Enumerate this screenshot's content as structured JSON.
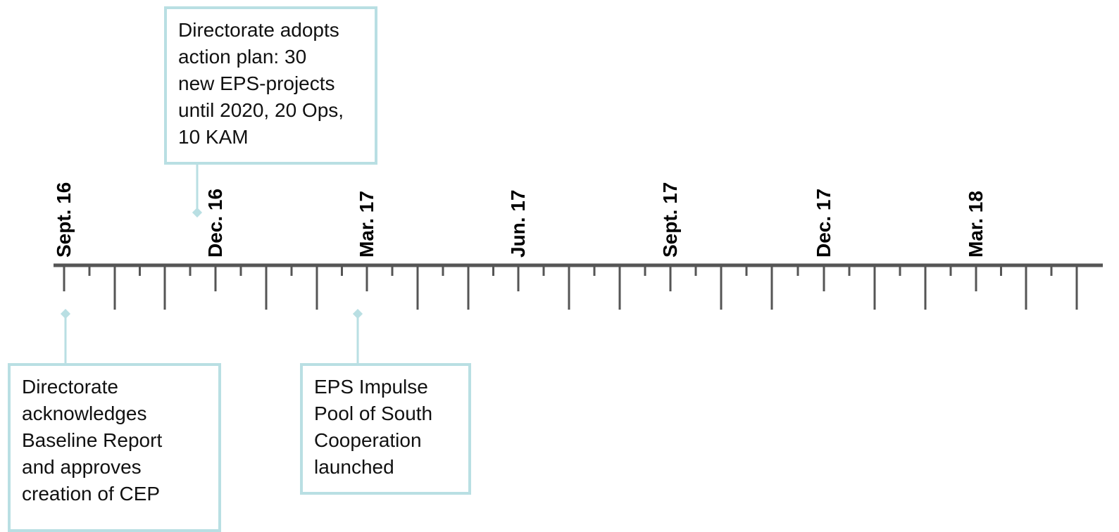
{
  "timeline": {
    "axis_color": "#555555",
    "accent_color": "#b9dfe3",
    "ticks": [
      "Sept. 16",
      "Dec. 16",
      "Mar. 17",
      "Jun. 17",
      "Sept. 17",
      "Dec. 17",
      "Mar. 18"
    ]
  },
  "events": [
    {
      "date": "Sept. 16",
      "text": "Directorate\nacknowledges\nBaseline Report\nand approves\ncreation of CEP"
    },
    {
      "date": "Nov. 16",
      "text": "Directorate adopts\naction plan: 30\nnew EPS-projects\nuntil 2020, 20 Ops,\n10 KAM"
    },
    {
      "date": "Mar. 17",
      "text": "EPS Impulse\nPool of South\nCooperation\nlaunched"
    }
  ]
}
